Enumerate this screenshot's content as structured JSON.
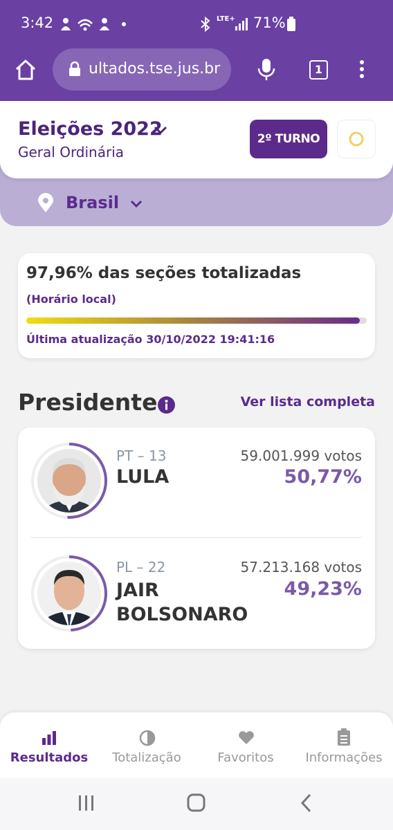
{
  "status_bar": {
    "time": "3:42",
    "network": "LTE+",
    "battery": "71%"
  },
  "browser": {
    "url": "ultados.tse.jus.br",
    "tabs": "1"
  },
  "header": {
    "title": "Eleições 2022",
    "subtitle": "Geral Ordinária",
    "round_button": "2º TURNO"
  },
  "location": "Brasil",
  "progress": {
    "title": "97,96% das seções totalizadas",
    "note": "(Horário local)",
    "updated": "Última atualização 30/10/2022 19:41:16"
  },
  "section": {
    "title": "Presidente",
    "link": "Ver lista completa"
  },
  "candidates": [
    {
      "party": "PT – 13",
      "name": "LULA",
      "votes": "59.001.999 votos",
      "percent": "50,77%"
    },
    {
      "party": "PL – 22",
      "name": "JAIR BOLSONARO",
      "votes": "57.213.168 votos",
      "percent": "49,23%"
    }
  ],
  "tabs": [
    "Resultados",
    "Totalização",
    "Favoritos",
    "Informações"
  ]
}
